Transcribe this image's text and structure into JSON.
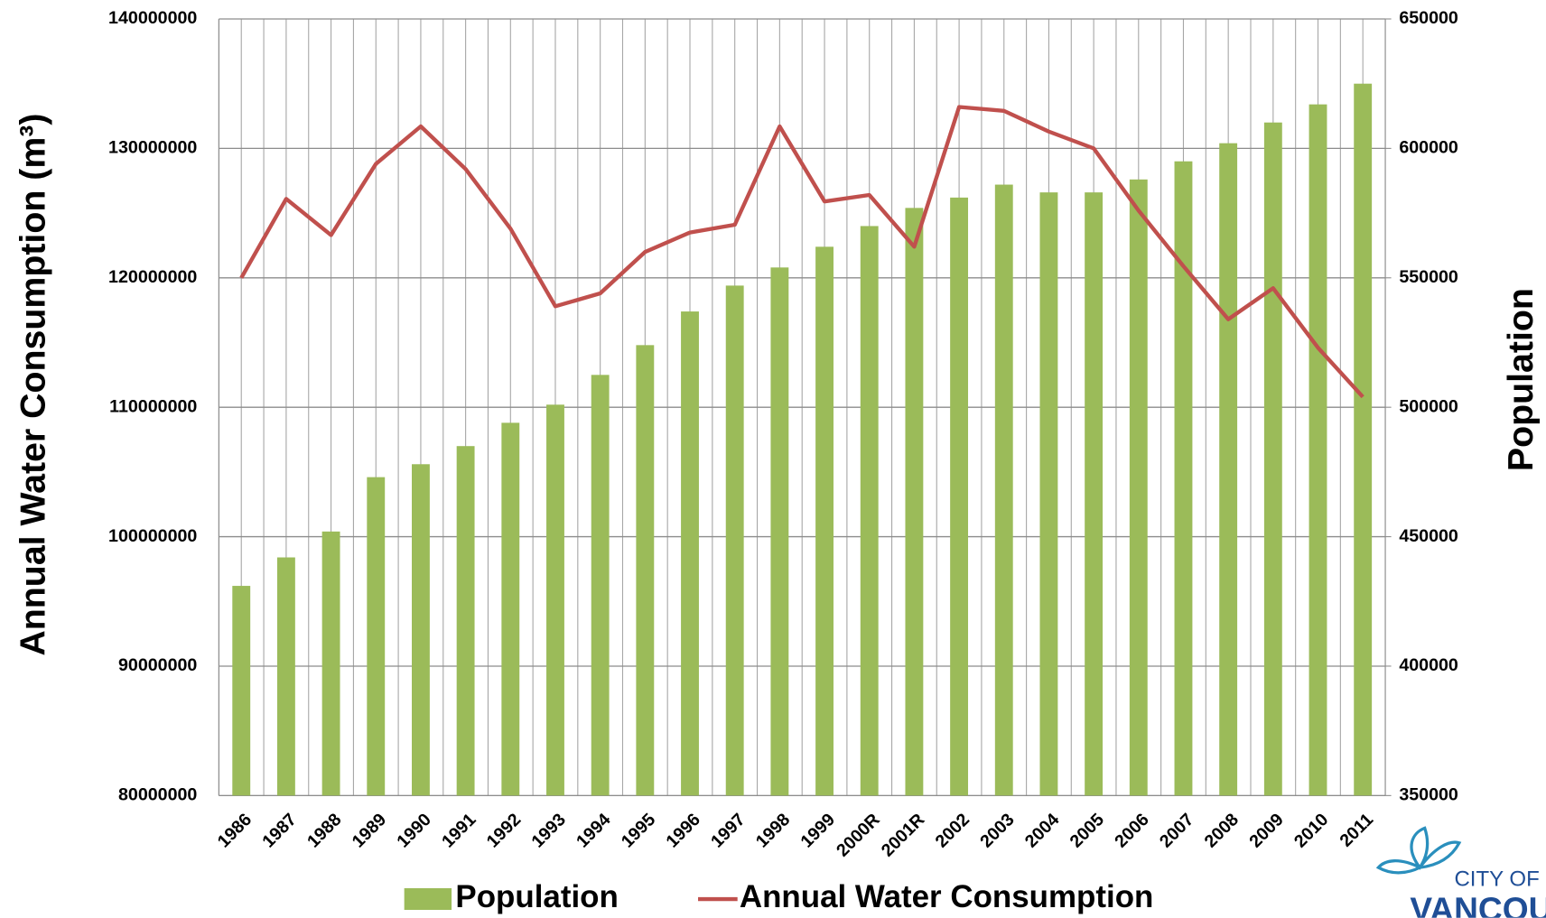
{
  "chart_data": {
    "type": "bar",
    "y_label": "Annual Water Consumption (m³)",
    "y2_label": "Population",
    "categories": [
      "1986",
      "1987",
      "1988",
      "1989",
      "1990",
      "1991",
      "1992",
      "1993",
      "1994",
      "1995",
      "1996",
      "1997",
      "1998",
      "1999",
      "2000R",
      "2001R",
      "2002",
      "2003",
      "2004",
      "2005",
      "2006",
      "2007",
      "2008",
      "2009",
      "2010",
      "2011"
    ],
    "series": [
      {
        "name": "Population",
        "type": "bar",
        "axis": "y2",
        "color": "#9bbb59",
        "values": [
          431000,
          442000,
          452000,
          473000,
          478000,
          485000,
          494000,
          501000,
          512500,
          524000,
          537000,
          547000,
          554000,
          562000,
          570000,
          577000,
          581000,
          586000,
          583000,
          583000,
          588000,
          595000,
          602000,
          610000,
          617000,
          625000
        ]
      },
      {
        "name": "Annual Water Consumption",
        "type": "line",
        "axis": "y",
        "color": "#c0504d",
        "values": [
          120000000,
          126100000,
          123300000,
          128800000,
          131700000,
          128400000,
          123800000,
          117800000,
          118800000,
          122000000,
          123500000,
          124100000,
          131700000,
          125900000,
          126400000,
          122400000,
          133200000,
          132900000,
          131300000,
          130000000,
          125200000,
          120900000,
          116800000,
          119200000,
          114600000,
          110800000
        ]
      }
    ],
    "ylim": [
      80000000,
      140000000
    ],
    "yticks": [
      80000000,
      90000000,
      100000000,
      110000000,
      120000000,
      130000000,
      140000000
    ],
    "y2lim": [
      350000,
      650000
    ],
    "y2ticks": [
      350000,
      400000,
      450000,
      500000,
      550000,
      600000,
      650000
    ],
    "grid": true,
    "legend": "bottom"
  },
  "logo": {
    "line1": "CITY OF",
    "line2": "VANCOUVER"
  }
}
